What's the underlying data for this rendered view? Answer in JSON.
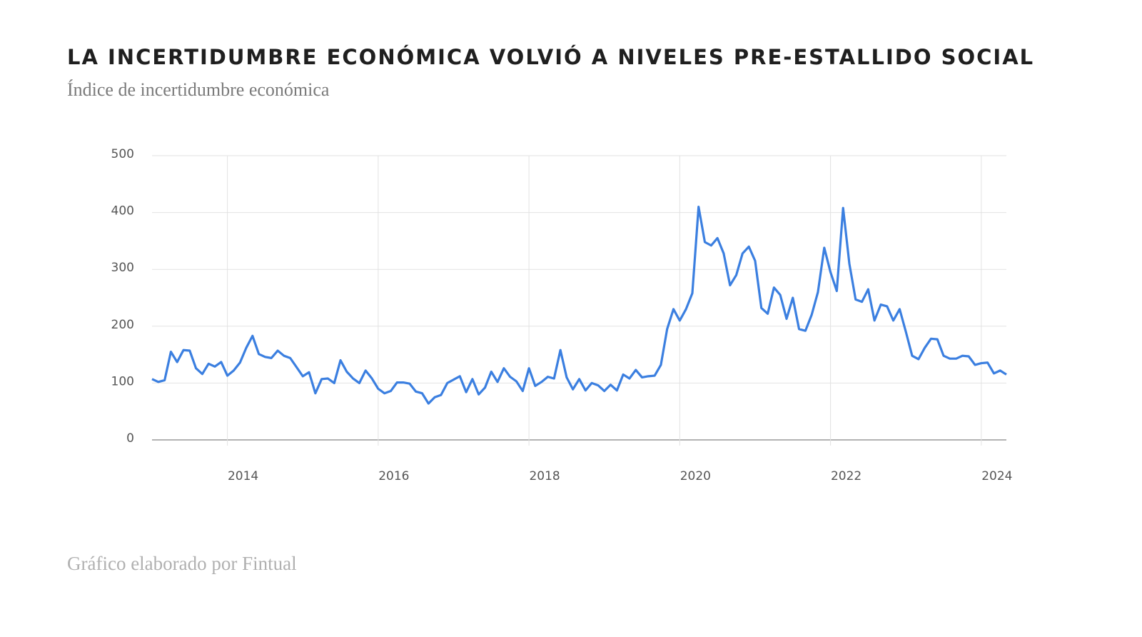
{
  "chart_data": {
    "type": "line",
    "title": "LA INCERTIDUMBRE ECONÓMICA VOLVIÓ A NIVELES PRE-ESTALLIDO SOCIAL",
    "subtitle": "Índice de incertidumbre económica",
    "source": "Gráfico elaborado por Fintual",
    "x": [
      2013.0,
      2013.083,
      2013.167,
      2013.25,
      2013.333,
      2013.417,
      2013.5,
      2013.583,
      2013.667,
      2013.75,
      2013.833,
      2013.917,
      2014.0,
      2014.083,
      2014.167,
      2014.25,
      2014.333,
      2014.417,
      2014.5,
      2014.583,
      2014.667,
      2014.75,
      2014.833,
      2014.917,
      2015.0,
      2015.083,
      2015.167,
      2015.25,
      2015.333,
      2015.417,
      2015.5,
      2015.583,
      2015.667,
      2015.75,
      2015.833,
      2015.917,
      2016.0,
      2016.083,
      2016.167,
      2016.25,
      2016.333,
      2016.417,
      2016.5,
      2016.583,
      2016.667,
      2016.75,
      2016.833,
      2016.917,
      2017.0,
      2017.083,
      2017.167,
      2017.25,
      2017.333,
      2017.417,
      2017.5,
      2017.583,
      2017.667,
      2017.75,
      2017.833,
      2017.917,
      2018.0,
      2018.083,
      2018.167,
      2018.25,
      2018.333,
      2018.417,
      2018.5,
      2018.583,
      2018.667,
      2018.75,
      2018.833,
      2018.917,
      2019.0,
      2019.083,
      2019.167,
      2019.25,
      2019.333,
      2019.417,
      2019.5,
      2019.583,
      2019.667,
      2019.75,
      2019.833,
      2019.917,
      2020.0,
      2020.083,
      2020.167,
      2020.25,
      2020.333,
      2020.417,
      2020.5,
      2020.583,
      2020.667,
      2020.75,
      2020.833,
      2020.917,
      2021.0,
      2021.083,
      2021.167,
      2021.25,
      2021.333,
      2021.417,
      2021.5,
      2021.583,
      2021.667,
      2021.75,
      2021.833,
      2021.917,
      2022.0,
      2022.083,
      2022.167,
      2022.25,
      2022.333,
      2022.417,
      2022.5,
      2022.583,
      2022.667,
      2022.75,
      2022.833,
      2022.917,
      2023.0,
      2023.083,
      2023.167,
      2023.25,
      2023.333,
      2023.417,
      2023.5,
      2023.583,
      2023.667,
      2023.75,
      2023.833,
      2023.917,
      2024.0,
      2024.083,
      2024.167,
      2024.25,
      2024.333
    ],
    "series": [
      {
        "color": "#3b7fe0",
        "values": [
          107,
          102,
          105,
          155,
          137,
          158,
          157,
          126,
          116,
          134,
          129,
          137,
          113,
          122,
          136,
          162,
          183,
          151,
          146,
          144,
          157,
          148,
          144,
          128,
          112,
          119,
          82,
          107,
          108,
          100,
          140,
          120,
          108,
          100,
          122,
          108,
          90,
          82,
          86,
          101,
          101,
          99,
          85,
          82,
          64,
          75,
          79,
          100,
          106,
          112,
          84,
          107,
          80,
          92,
          120,
          102,
          126,
          111,
          103,
          86,
          126,
          95,
          102,
          111,
          108,
          158,
          110,
          89,
          107,
          87,
          100,
          96,
          86,
          97,
          87,
          115,
          108,
          123,
          110,
          112,
          113,
          132,
          195,
          230,
          210,
          230,
          258,
          410,
          348,
          342,
          355,
          328,
          272,
          290,
          328,
          340,
          315,
          232,
          222,
          268,
          255,
          213,
          250,
          195,
          192,
          220,
          260,
          338,
          295,
          262,
          408,
          310,
          247,
          243,
          265,
          210,
          238,
          235,
          210,
          230,
          190,
          148,
          142,
          162,
          178,
          177,
          148,
          143,
          143,
          148,
          147,
          132,
          135,
          136,
          117,
          122,
          115
        ]
      }
    ],
    "xlim": [
      2013,
      2024.333
    ],
    "xticks": [
      2014,
      2016,
      2018,
      2020,
      2022,
      2024
    ],
    "ylim": [
      0,
      500
    ],
    "yticks": [
      0,
      100,
      200,
      300,
      400,
      500
    ],
    "grid": true
  }
}
